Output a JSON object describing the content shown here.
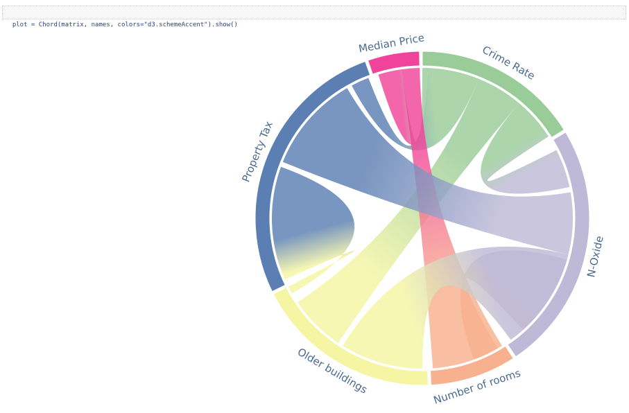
{
  "code_cell": {
    "text": "plot = Chord(matrix, names, colors=\"d3.schemeAccent\").show()"
  },
  "chart_data": {
    "type": "chord",
    "groups": [
      {
        "name": "Crime Rate",
        "color": "#99cc99"
      },
      {
        "name": "N-Oxide",
        "color": "#beb9d6"
      },
      {
        "name": "Number of rooms",
        "color": "#f8b18f"
      },
      {
        "name": "Older buildings",
        "color": "#f5f5a3"
      },
      {
        "name": "Property Tax",
        "color": "#5b7fb3"
      },
      {
        "name": "Median Price",
        "color": "#f0449a"
      }
    ],
    "chords": [
      {
        "source": "Crime Rate",
        "target": "N-Oxide"
      },
      {
        "source": "Crime Rate",
        "target": "Older buildings"
      },
      {
        "source": "Crime Rate",
        "target": "Property Tax"
      },
      {
        "source": "Median Price",
        "target": "Crime Rate"
      },
      {
        "source": "Median Price",
        "target": "Number of rooms"
      },
      {
        "source": "Property Tax",
        "target": "N-Oxide"
      },
      {
        "source": "Property Tax",
        "target": "Older buildings"
      },
      {
        "source": "N-Oxide",
        "target": "Number of rooms"
      },
      {
        "source": "N-Oxide",
        "target": "Older buildings"
      }
    ]
  }
}
